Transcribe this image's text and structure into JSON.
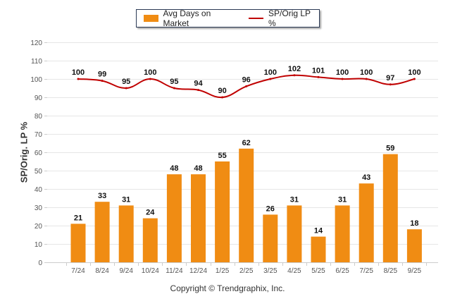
{
  "chart_data": {
    "type": "bar+line",
    "title": "",
    "xlabel": "",
    "ylabel": "SP/Orig. LP %",
    "ylim": [
      0,
      120
    ],
    "yticks": [
      0,
      10,
      20,
      30,
      40,
      50,
      60,
      70,
      80,
      90,
      100,
      110,
      120
    ],
    "grid": true,
    "legend_position": "top-center",
    "categories": [
      "7/24",
      "8/24",
      "9/24",
      "10/24",
      "11/24",
      "12/24",
      "1/25",
      "2/25",
      "3/25",
      "4/25",
      "5/25",
      "6/25",
      "7/25",
      "8/25",
      "9/25"
    ],
    "series": [
      {
        "name": "Avg Days on Market",
        "type": "bar",
        "color": "#f08c13",
        "values": [
          21,
          33,
          31,
          24,
          48,
          48,
          55,
          62,
          26,
          31,
          14,
          31,
          43,
          59,
          18
        ]
      },
      {
        "name": "SP/Orig LP %",
        "type": "line",
        "color": "#c00000",
        "values": [
          100,
          99,
          95,
          100,
          95,
          94,
          90,
          96,
          100,
          102,
          101,
          100,
          100,
          97,
          100
        ]
      }
    ]
  },
  "footer": {
    "copyright": "Copyright © Trendgraphix, Inc."
  }
}
